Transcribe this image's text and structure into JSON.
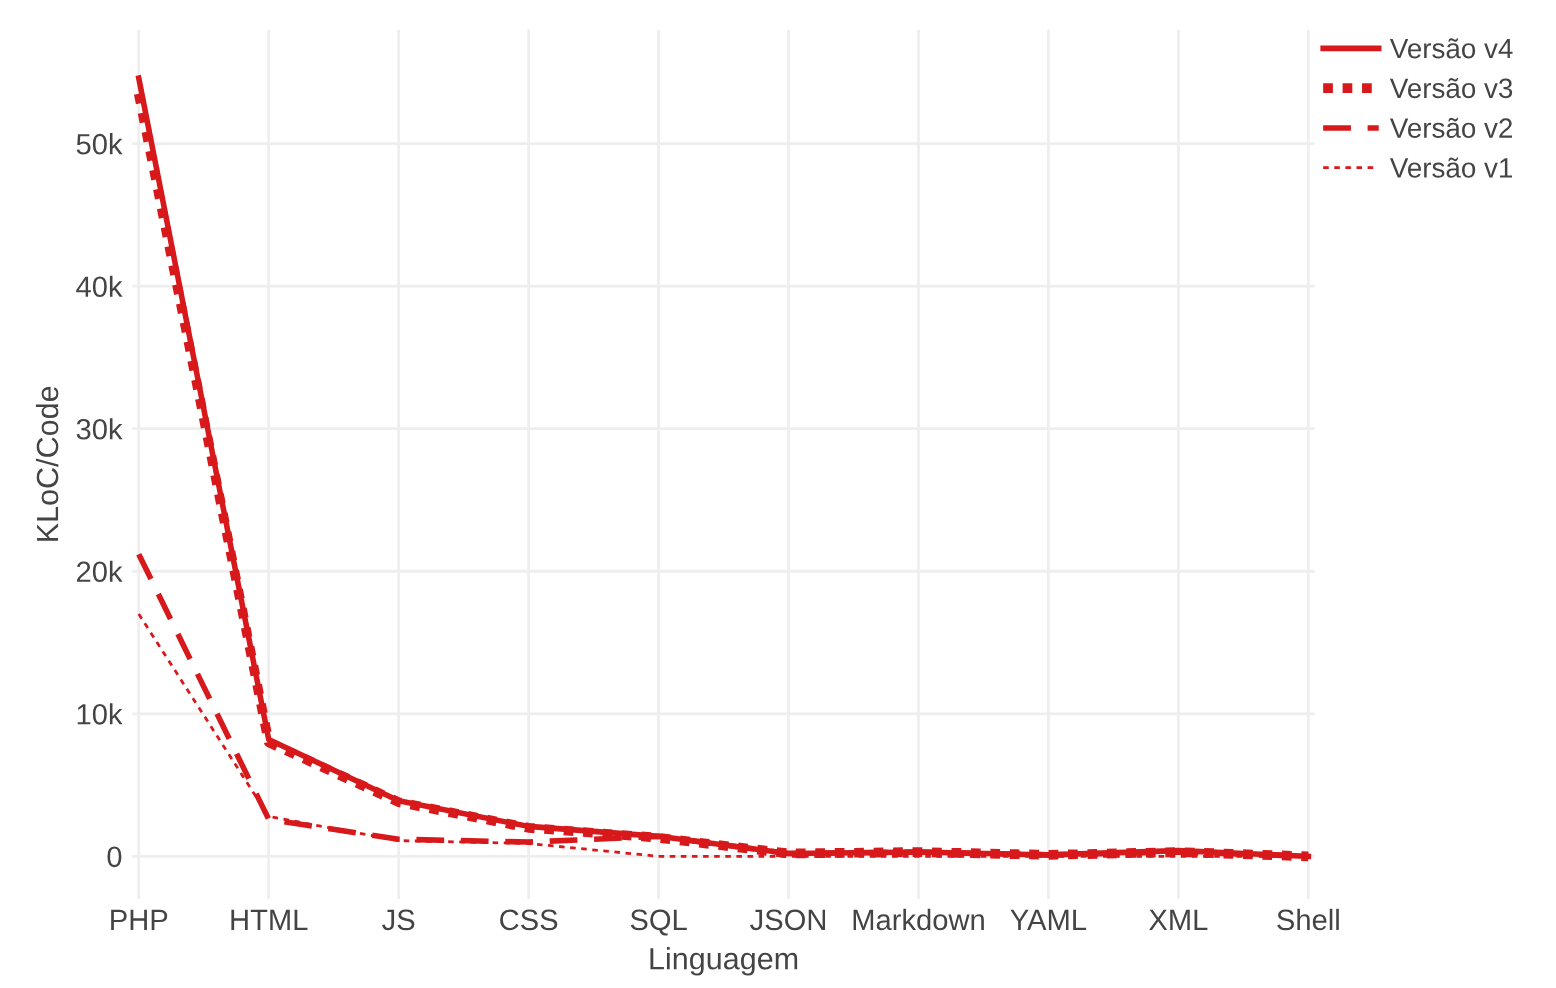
{
  "chart_data": {
    "type": "line",
    "xlabel": "Linguagem",
    "ylabel": "KLoC/Code",
    "categories": [
      "PHP",
      "HTML",
      "JS",
      "CSS",
      "SQL",
      "JSON",
      "Markdown",
      "YAML",
      "XML",
      "Shell"
    ],
    "series": [
      {
        "name": "Versão v4",
        "color": "#d7191c",
        "line_style": "solid",
        "values": [
          54600,
          8200,
          3900,
          2100,
          1400,
          200,
          300,
          100,
          400,
          0
        ]
      },
      {
        "name": "Versão v3",
        "color": "#d7191c",
        "line_style": "dotted",
        "values": [
          53500,
          8000,
          3800,
          2000,
          1300,
          200,
          300,
          100,
          300,
          0
        ]
      },
      {
        "name": "Versão v2",
        "color": "#d7191c",
        "line_style": "dashed",
        "values": [
          21200,
          2600,
          1200,
          1000,
          1400,
          200,
          300,
          100,
          300,
          0
        ]
      },
      {
        "name": "Versão v1",
        "color": "#d7191c",
        "line_style": "dotted_thin",
        "values": [
          17000,
          2800,
          1100,
          900,
          0,
          0,
          0,
          0,
          0,
          0
        ]
      }
    ],
    "ylim": [
      -3000,
      58000
    ],
    "yticks": [
      0,
      {
        "value": 10000,
        "label": "10k"
      },
      {
        "value": 20000,
        "label": "20k"
      },
      {
        "value": 30000,
        "label": "30k"
      },
      {
        "value": 40000,
        "label": "40k"
      },
      {
        "value": 50000,
        "label": "50k"
      }
    ],
    "grid": true,
    "legend": "top right"
  }
}
